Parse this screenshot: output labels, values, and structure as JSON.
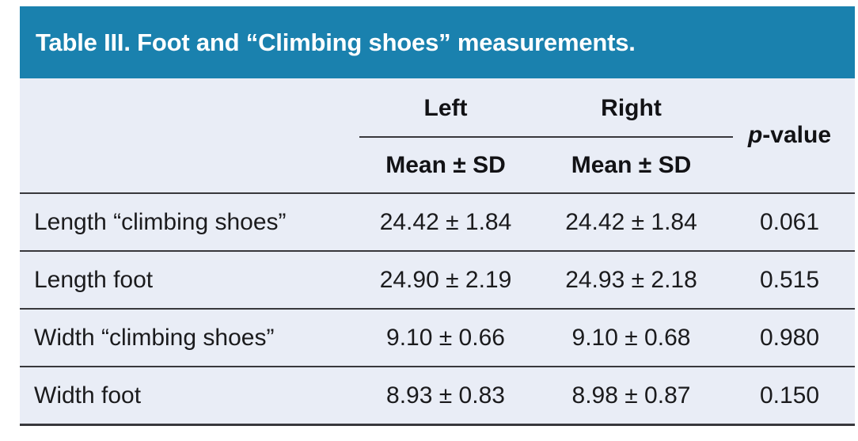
{
  "title": "Table III. Foot and “Climbing shoes” measurements.",
  "colors": {
    "title_bar_bg": "#1a81ae",
    "title_text": "#ffffff",
    "body_bg": "#e9edf6",
    "rule": "#38383c",
    "text": "#1b1b1d"
  },
  "header": {
    "group_left": "Left",
    "group_right": "Right",
    "sub_left": "Mean ± SD",
    "sub_right": "Mean ± SD",
    "p_italic": "p",
    "p_suffix": "-value"
  },
  "rows": [
    {
      "label": "Length “climbing shoes”",
      "left": "24.42 ± 1.84",
      "right": "24.42 ± 1.84",
      "p": "0.061"
    },
    {
      "label": "Length foot",
      "left": "24.90 ± 2.19",
      "right": "24.93 ± 2.18",
      "p": "0.515"
    },
    {
      "label": "Width “climbing shoes”",
      "left": "9.10 ± 0.66",
      "right": "9.10 ± 0.68",
      "p": "0.980"
    },
    {
      "label": "Width foot",
      "left": "8.93 ± 0.83",
      "right": "8.98 ± 0.87",
      "p": "0.150"
    }
  ],
  "chart_data": {
    "type": "table",
    "title": "Table III. Foot and “Climbing shoes” measurements.",
    "columns": [
      "",
      "Left Mean ± SD",
      "Right Mean ± SD",
      "p-value"
    ],
    "rows": [
      [
        "Length “climbing shoes”",
        "24.42 ± 1.84",
        "24.42 ± 1.84",
        "0.061"
      ],
      [
        "Length foot",
        "24.90 ± 2.19",
        "24.93 ± 2.18",
        "0.515"
      ],
      [
        "Width “climbing shoes”",
        "9.10 ± 0.66",
        "9.10 ± 0.68",
        "0.980"
      ],
      [
        "Width foot",
        "8.93 ± 0.83",
        "8.98 ± 0.87",
        "0.150"
      ]
    ]
  }
}
